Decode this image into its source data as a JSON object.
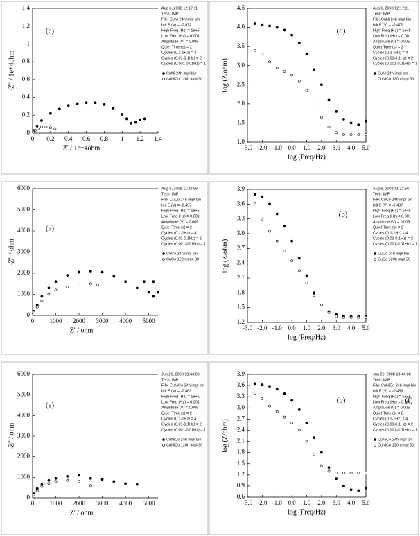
{
  "chart_data": [
    {
      "type": "scatter",
      "labels": [
        "(c)"
      ],
      "xlabel": "Z' / 1e+4ohm",
      "ylabel": "-Z'' / 1e+4ohm",
      "xlim": [
        0,
        1.4
      ],
      "ylim": [
        0,
        1.4
      ],
      "xticks": [
        0,
        0.2,
        0.4,
        0.6,
        0.8,
        1,
        1.2,
        1.4
      ],
      "yticks": [
        0,
        0.2,
        0.4,
        0.6,
        0.8,
        1,
        1.2,
        1.4
      ],
      "annotations": [
        "Aug 6, 2008 12:17:11",
        "Tech: IMP",
        "File: CuNi 24h impl bin",
        "Init E (V) = -0.472",
        "High Freq (Hz) = 1e+5",
        "Low Freq (Hz) = 0.001",
        "Amplitude (V) = 0.005",
        "Quiet Time (s) = 2",
        "Cycles (0.1-1Hz) = 4",
        "Cycles (0.01-0.1Hz) = 2",
        "Cycles (0.001-0.01Hz) = 1"
      ],
      "series": [
        {
          "name": "CuNi 24h impl bin",
          "color": "#000000",
          "marker": "filled",
          "x": [
            0.02,
            0.05,
            0.1,
            0.2,
            0.3,
            0.4,
            0.5,
            0.6,
            0.7,
            0.8,
            0.9,
            1.0,
            1.05,
            1.1,
            1.15,
            1.2,
            1.25
          ],
          "values": [
            0.03,
            0.08,
            0.14,
            0.22,
            0.27,
            0.31,
            0.33,
            0.34,
            0.34,
            0.32,
            0.28,
            0.21,
            0.16,
            0.11,
            0.12,
            0.15,
            0.16
          ]
        },
        {
          "name": "CuNiCo 120h impl 30",
          "color": "#000000",
          "marker": "open",
          "x": [
            0.01,
            0.03,
            0.06,
            0.1,
            0.15,
            0.2,
            0.25
          ],
          "values": [
            0.01,
            0.03,
            0.05,
            0.07,
            0.07,
            0.06,
            0.05
          ]
        }
      ]
    },
    {
      "type": "scatter",
      "labels": [
        "(d)"
      ],
      "xlabel": "log (Freq/Hz)",
      "ylabel": "log (Z/ohm)",
      "xlim": [
        -3,
        5
      ],
      "ylim": [
        1,
        4.5
      ],
      "xticks": [
        {
          "value": -3,
          "label": "-3.0"
        },
        {
          "value": -2,
          "label": "-2.0"
        },
        {
          "value": -1,
          "label": "-1.0"
        },
        {
          "value": 0,
          "label": "0.0"
        },
        {
          "value": 1,
          "label": "1.0"
        },
        {
          "value": 2,
          "label": "2.0"
        },
        {
          "value": 3,
          "label": "3.0"
        },
        {
          "value": 4,
          "label": "4.0"
        },
        {
          "value": 5,
          "label": "5.0"
        }
      ],
      "yticks": [
        {
          "value": 1,
          "label": "1.0"
        },
        1.5,
        {
          "value": 2,
          "label": "2.0"
        },
        2.5,
        {
          "value": 3,
          "label": "3.0"
        },
        3.5,
        {
          "value": 4,
          "label": "4.0"
        },
        4.5
      ],
      "annotations": [
        "Aug 6, 2008 12:17:11",
        "Tech: IMP",
        "File: CuNi 24h impl bin",
        "Init E (V) = -0.472",
        "High Freq (Hz) = 1e+5",
        "Low Freq (Hz) = 0.001",
        "Amplitude (V) = 0.005",
        "Quiet Time (s) = 2",
        "Cycles (0.1-1Hz) = 4",
        "Cycles (0.01-0.1Hz) = 2",
        "Cycles (0.001-0.01Hz) = 1"
      ],
      "series": [
        {
          "name": "CuNi 24h impl bin",
          "color": "#000000",
          "marker": "filled",
          "x": [
            -2.5,
            -2,
            -1.5,
            -1,
            -0.5,
            0,
            0.5,
            1,
            1.5,
            2,
            2.5,
            3,
            3.5,
            4,
            4.5,
            5
          ],
          "values": [
            4.1,
            4.07,
            4.04,
            4.0,
            3.93,
            3.8,
            3.6,
            3.3,
            2.9,
            2.5,
            2.1,
            1.8,
            1.6,
            1.5,
            1.45,
            1.55
          ]
        },
        {
          "name": "CuNiCo 120h impl 30",
          "color": "#000000",
          "marker": "open",
          "x": [
            -2.5,
            -2,
            -1.5,
            -1,
            -0.5,
            0,
            0.5,
            1,
            1.5,
            2,
            2.5,
            3,
            3.5,
            4,
            4.5,
            5
          ],
          "values": [
            3.4,
            3.3,
            3.1,
            2.95,
            2.85,
            2.75,
            2.6,
            2.35,
            2.0,
            1.65,
            1.4,
            1.25,
            1.2,
            1.2,
            1.2,
            1.2
          ]
        }
      ]
    },
    {
      "type": "scatter",
      "labels": [
        "(a)"
      ],
      "xlabel": "Z' / ohm",
      "ylabel": "-Z'' / ohm",
      "xlim": [
        0,
        5400
      ],
      "ylim": [
        0,
        6000
      ],
      "xticks": [
        0,
        1000,
        2000,
        3000,
        4000,
        5000
      ],
      "yticks": [
        0,
        1000,
        2000,
        3000,
        4000,
        5000,
        6000
      ],
      "annotations": [
        "Aug 6, 2008 11:32:56",
        "Tech: IMP",
        "File: CuCo 24h impl bin",
        "Init E (V) = -0.497",
        "High Freq (Hz) = 1e+5",
        "Low Freq (Hz) = 0.001",
        "Amplitude (V) = 0.005",
        "Quiet Time (s) = 2",
        "Cycles (0.1-1Hz) = 4",
        "Cycles (0.01-0.1Hz) = 2",
        "Cycles (0.001-0.01Hz) = 1"
      ],
      "series": [
        {
          "name": "CuCo 24h impl bin",
          "color": "#000000",
          "marker": "filled",
          "x": [
            50,
            200,
            400,
            700,
            1000,
            1500,
            2000,
            2500,
            3000,
            3500,
            4000,
            4500,
            4800,
            5000,
            5200,
            5200,
            5400
          ],
          "values": [
            200,
            500,
            900,
            1300,
            1600,
            1900,
            2050,
            2100,
            2050,
            1850,
            1600,
            1300,
            1600,
            1100,
            1600,
            900,
            1100
          ]
        },
        {
          "name": "CuCo 120h impl 30",
          "color": "#000000",
          "marker": "open",
          "x": [
            50,
            200,
            400,
            700,
            1000,
            1500,
            2000,
            2500,
            2800
          ],
          "values": [
            150,
            400,
            700,
            1000,
            1200,
            1350,
            1450,
            1500,
            1450
          ]
        }
      ]
    },
    {
      "type": "scatter",
      "labels": [
        "(b)"
      ],
      "xlabel": "log (Freq/Hz)",
      "ylabel": "log (Z/ohm)",
      "xlim": [
        -3,
        5
      ],
      "ylim": [
        1.2,
        3.9
      ],
      "xticks": [
        {
          "value": -3,
          "label": "-3.0"
        },
        {
          "value": -2,
          "label": "-2.0"
        },
        {
          "value": -1,
          "label": "-1.0"
        },
        {
          "value": 0,
          "label": "0.0"
        },
        {
          "value": 1,
          "label": "1.0"
        },
        {
          "value": 2,
          "label": "2.0"
        },
        {
          "value": 3,
          "label": "3.0"
        },
        {
          "value": 4,
          "label": "4.0"
        },
        {
          "value": 5,
          "label": "5.0"
        }
      ],
      "yticks": [
        1.2,
        1.5,
        1.8,
        2.1,
        2.4,
        2.7,
        {
          "value": 3,
          "label": "3.0"
        },
        3.3,
        3.6,
        3.9
      ],
      "annotations": [
        "Aug 6, 2008 11:32:56",
        "Tech: IMP",
        "File: CuCo 24h impl bin",
        "Init E (V) = -0.497",
        "High Freq (Hz) = 1e+5",
        "Low Freq (Hz) = 0.001",
        "Amplitude (V) = 0.005",
        "Quiet Time (s) = 2",
        "Cycles (0.1-1Hz) = 4",
        "Cycles (0.01-0.1Hz) = 2",
        "Cycles (0.001-0.01Hz) = 1"
      ],
      "series": [
        {
          "name": "CuCo 24h impl bin",
          "color": "#000000",
          "marker": "filled",
          "x": [
            -2.5,
            -2,
            -1.5,
            -1,
            -0.5,
            0,
            0.5,
            1,
            1.5,
            2,
            2.5,
            3,
            3.5,
            4,
            4.5,
            5
          ],
          "values": [
            3.8,
            3.75,
            3.6,
            3.4,
            3.15,
            2.85,
            2.5,
            2.15,
            1.8,
            1.55,
            1.42,
            1.36,
            1.33,
            1.32,
            1.32,
            1.33
          ]
        },
        {
          "name": "CuCo 120h impl 30",
          "color": "#000000",
          "marker": "open",
          "x": [
            -2.5,
            -2,
            -1.5,
            -1,
            -0.5,
            0,
            0.5,
            1,
            1.5,
            2,
            2.5,
            3,
            3.5,
            4,
            4.5,
            5
          ],
          "values": [
            3.6,
            3.3,
            3.05,
            2.85,
            2.65,
            2.45,
            2.25,
            2.0,
            1.75,
            1.55,
            1.4,
            1.32,
            1.3,
            1.3,
            1.3,
            1.3
          ]
        }
      ]
    },
    {
      "type": "scatter",
      "labels": [
        "(e)"
      ],
      "xlabel": "Z' / ohm",
      "ylabel": "-Z'' / ohm",
      "xlim": [
        0,
        5400
      ],
      "ylim": [
        0,
        6000
      ],
      "xticks": [
        0,
        1000,
        2000,
        3000,
        4000,
        5000
      ],
      "yticks": [
        0,
        1000,
        2000,
        3000,
        4000,
        5000,
        6000
      ],
      "annotations": [
        "Jun 26, 2008 18:44:00",
        "Tech: IMP",
        "File: CuNiCo 24h impl bin",
        "Init E (V) = -0.483",
        "High Freq (Hz) = 1e+5",
        "Low Freq (Hz) = 0.001",
        "Amplitude (V) = 0.005",
        "Quiet Time (s) = 2",
        "Cycles (0.1-1Hz) = 4",
        "Cycles (0.01-0.1Hz) = 2",
        "Cycles (0.001-0.01Hz) = 1"
      ],
      "series": [
        {
          "name": "CuNiCo 24h impl bin",
          "color": "#000000",
          "marker": "filled",
          "x": [
            50,
            200,
            400,
            700,
            1000,
            1500,
            2000,
            2500,
            3000,
            3500,
            4000,
            4500
          ],
          "values": [
            200,
            450,
            650,
            850,
            950,
            1050,
            1100,
            950,
            900,
            800,
            700,
            650
          ]
        },
        {
          "name": "CuNiCo 120h impl 30",
          "color": "#000000",
          "marker": "open",
          "x": [
            50,
            200,
            400,
            700,
            1000,
            1500,
            2000,
            2500
          ],
          "values": [
            150,
            350,
            550,
            700,
            800,
            850,
            800,
            600
          ]
        }
      ]
    },
    {
      "type": "scatter",
      "labels": [
        "(b)",
        "(f)"
      ],
      "xlabel": "log (Freq/Hz)",
      "ylabel": "log (Z/ohm)",
      "xlim": [
        -3,
        5
      ],
      "ylim": [
        0.6,
        3.9
      ],
      "xticks": [
        {
          "value": -3,
          "label": "-3.0"
        },
        {
          "value": -2,
          "label": "-2.0"
        },
        {
          "value": -1,
          "label": "-1.0"
        },
        {
          "value": 0,
          "label": "0.0"
        },
        {
          "value": 1,
          "label": "1.0"
        },
        {
          "value": 2,
          "label": "2.0"
        },
        {
          "value": 3,
          "label": "3.0"
        },
        {
          "value": 4,
          "label": "4.0"
        },
        {
          "value": 5,
          "label": "5.0"
        }
      ],
      "yticks": [
        0.6,
        0.9,
        1.2,
        1.5,
        1.8,
        2.1,
        2.4,
        2.7,
        {
          "value": 3,
          "label": "3.0"
        },
        3.3,
        3.6,
        3.9
      ],
      "annotations": [
        "Jun 26, 2008 18:44:00",
        "Tech: IMP",
        "File: CuNiCo 24h impl bin",
        "Init E (V) = -0.483",
        "High Freq (Hz) = 1e+5",
        "Low Freq (Hz) = 0.001",
        "Amplitude (V) = 0.005",
        "Quiet Time (s) = 2",
        "Cycles (0.1-1Hz) = 4",
        "Cycles (0.01-0.1Hz) = 2",
        "Cycles (0.001-0.01Hz) = 1"
      ],
      "series": [
        {
          "name": "CuNiCo 24h impl bin",
          "color": "#000000",
          "marker": "filled",
          "x": [
            -2.5,
            -2,
            -1.5,
            -1,
            -0.5,
            0,
            0.5,
            1,
            1.5,
            2,
            2.5,
            3,
            3.5,
            4,
            4.5,
            5
          ],
          "values": [
            3.65,
            3.62,
            3.58,
            3.5,
            3.38,
            3.2,
            2.95,
            2.6,
            2.2,
            1.8,
            1.4,
            1.1,
            0.9,
            0.8,
            0.78,
            0.85
          ]
        },
        {
          "name": "CuNiCo 120h impl 30",
          "color": "#000000",
          "marker": "open",
          "x": [
            -2.5,
            -2,
            -1.5,
            -1,
            -0.5,
            0,
            0.5,
            1,
            1.5,
            2,
            2.5,
            3,
            3.5,
            4,
            4.5,
            5
          ],
          "values": [
            3.4,
            3.25,
            3.05,
            2.9,
            2.75,
            2.6,
            2.4,
            2.1,
            1.75,
            1.45,
            1.3,
            1.25,
            1.25,
            1.25,
            1.25,
            1.25
          ]
        }
      ]
    }
  ]
}
